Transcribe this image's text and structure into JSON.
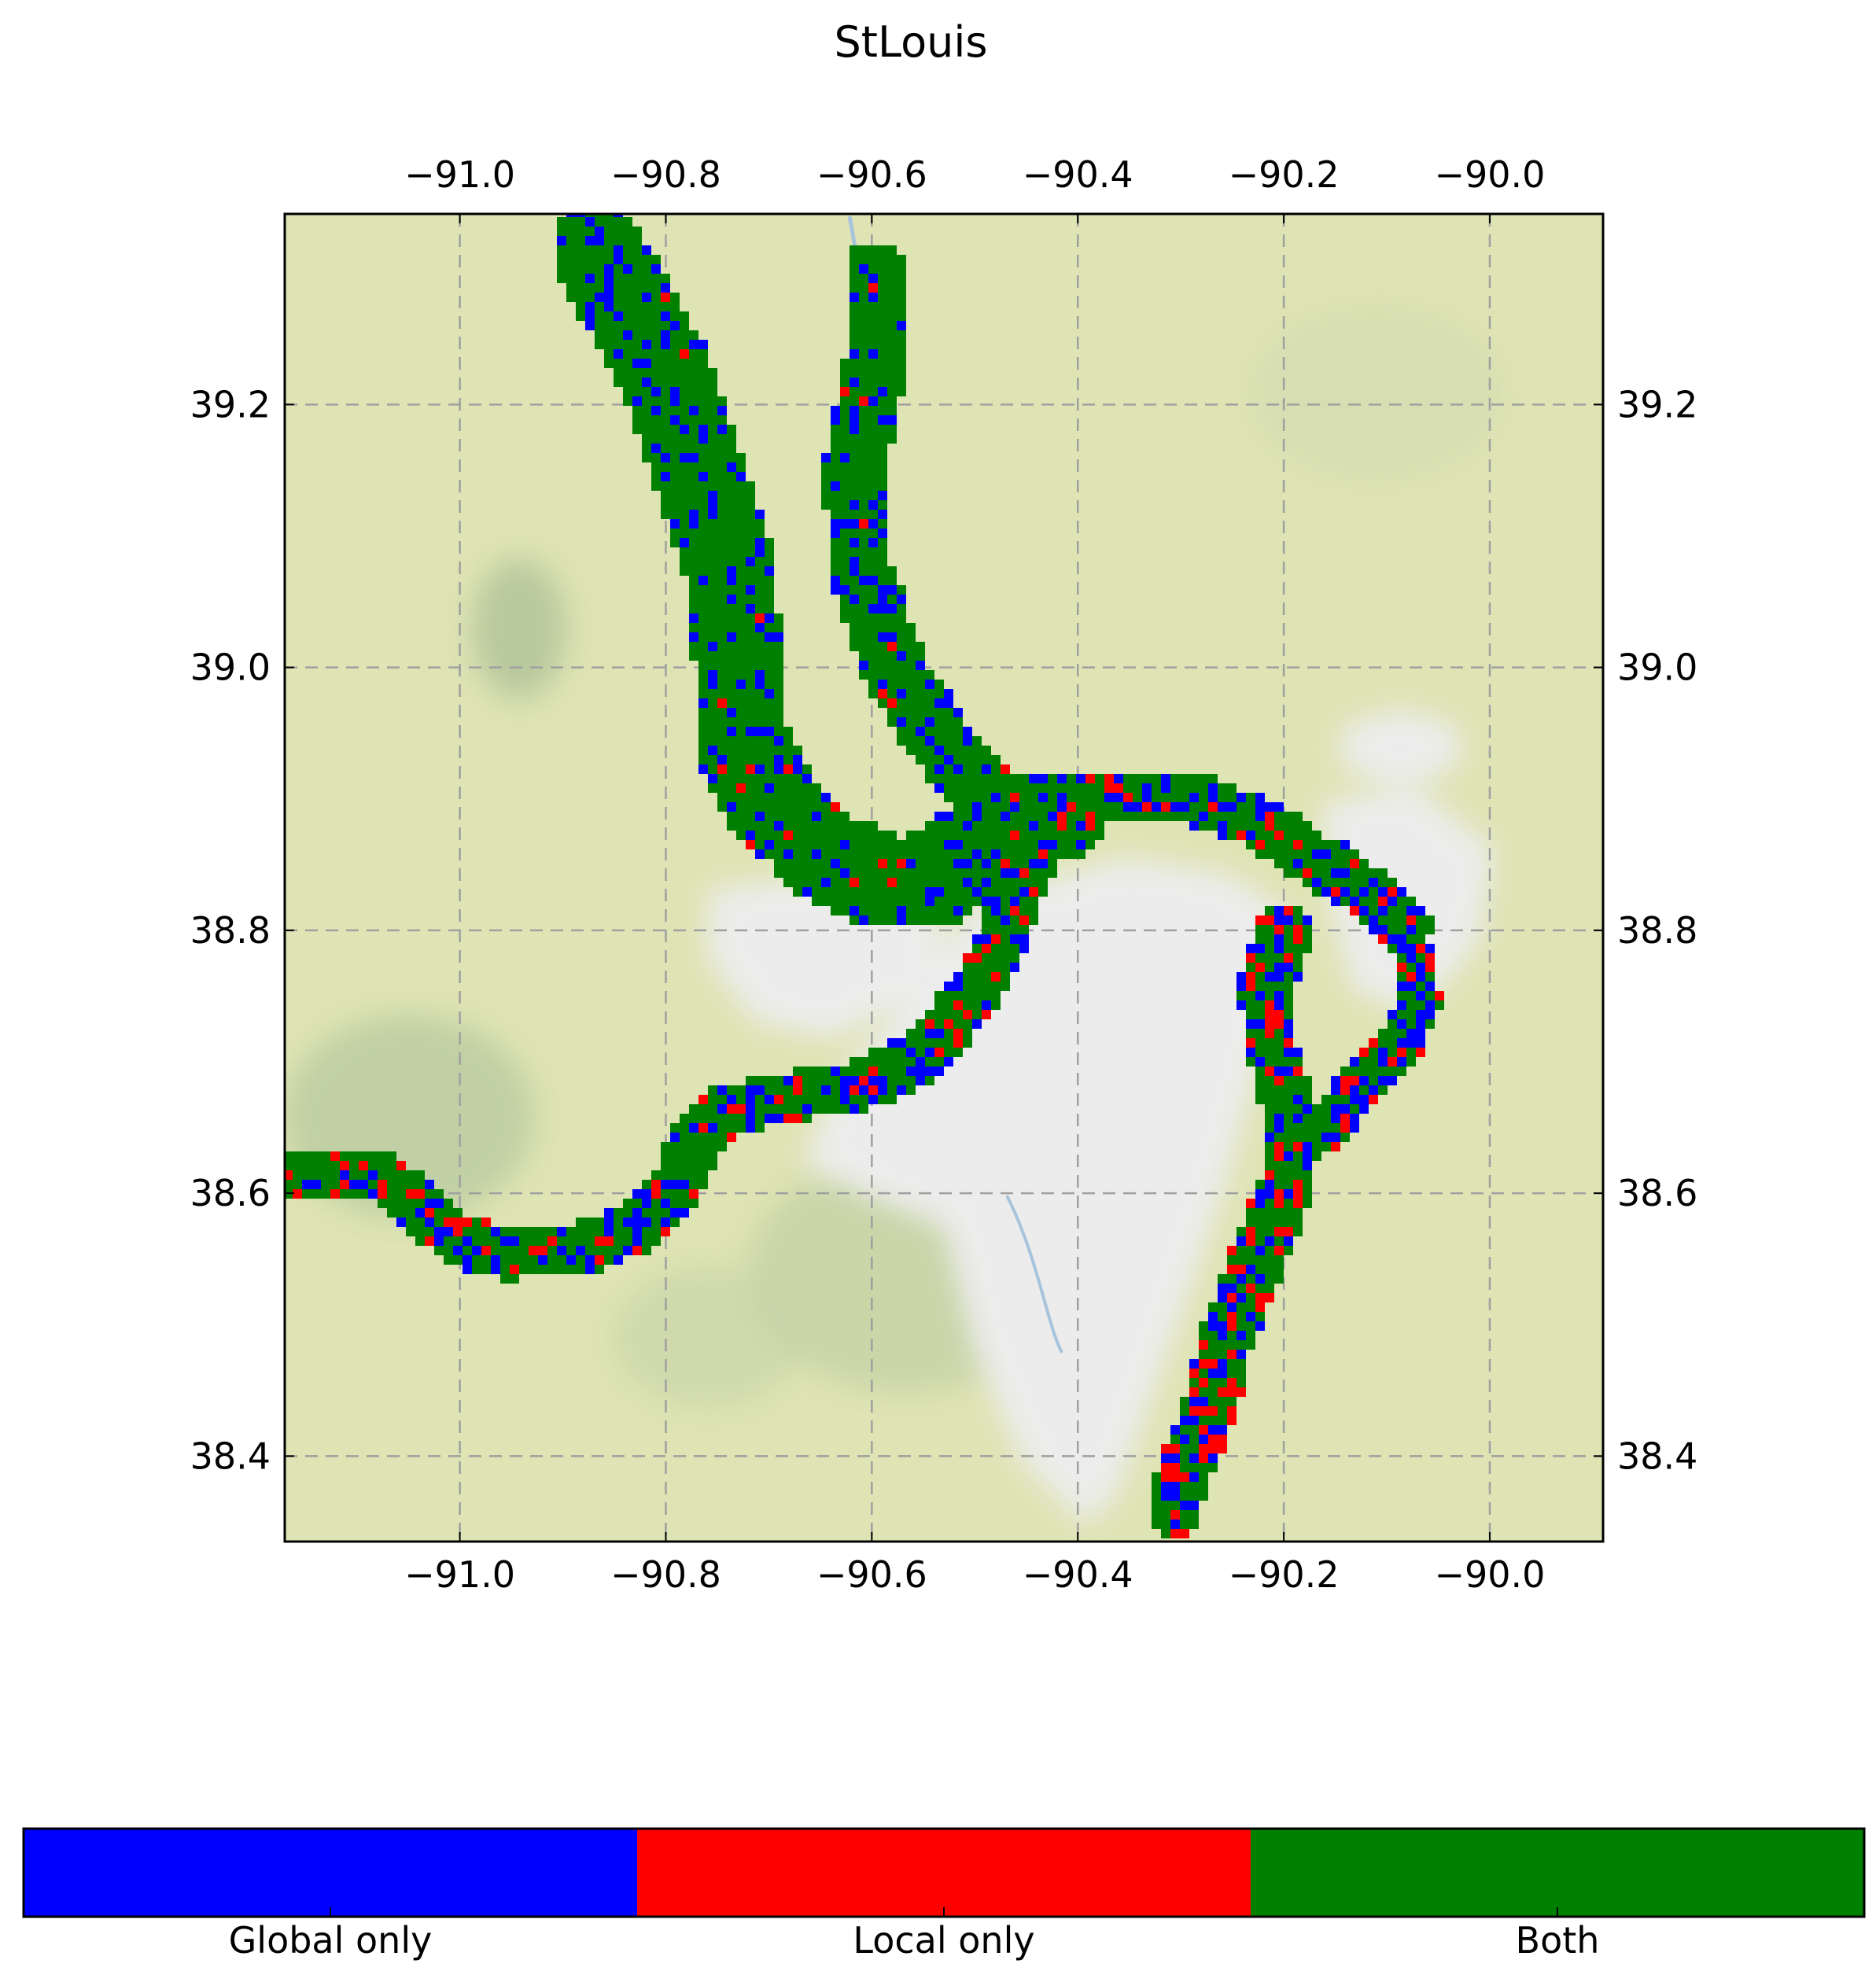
{
  "title": "StLouis",
  "axes": {
    "x_ticks": [
      {
        "value": -91.0,
        "label": "−91.0"
      },
      {
        "value": -90.8,
        "label": "−90.8"
      },
      {
        "value": -90.6,
        "label": "−90.6"
      },
      {
        "value": -90.4,
        "label": "−90.4"
      },
      {
        "value": -90.2,
        "label": "−90.2"
      },
      {
        "value": -90.0,
        "label": "−90.0"
      }
    ],
    "y_ticks": [
      {
        "value": 39.2,
        "label": "39.2"
      },
      {
        "value": 39.0,
        "label": "39.0"
      },
      {
        "value": 38.8,
        "label": "38.8"
      },
      {
        "value": 38.6,
        "label": "38.6"
      },
      {
        "value": 38.4,
        "label": "38.4"
      }
    ],
    "x_range": [
      -91.17,
      -89.89
    ],
    "y_range": [
      38.335,
      39.345
    ],
    "grid": true
  },
  "legend": {
    "position": "bottom",
    "items": [
      {
        "label": "Global only",
        "color": "#0000ff"
      },
      {
        "label": "Local only",
        "color": "#ff0000"
      },
      {
        "label": "Both",
        "color": "#008000"
      }
    ]
  },
  "basemap": {
    "land_color": "#dfe4b4",
    "urban_color": "#ececec",
    "river_color": "#a8c4dc"
  },
  "flood_paths": {
    "missouri": [
      [
        -91.16,
        38.615
      ],
      [
        -91.08,
        38.615
      ],
      [
        -91.04,
        38.59
      ],
      [
        -91.0,
        38.565
      ],
      [
        -90.95,
        38.555
      ],
      [
        -90.88,
        38.56
      ],
      [
        -90.82,
        38.575
      ],
      [
        -90.79,
        38.605
      ],
      [
        -90.77,
        38.64
      ],
      [
        -90.74,
        38.665
      ],
      [
        -90.68,
        38.675
      ],
      [
        -90.6,
        38.685
      ],
      [
        -90.55,
        38.705
      ],
      [
        -90.51,
        38.74
      ],
      [
        -90.48,
        38.78
      ],
      [
        -90.46,
        38.83
      ],
      [
        -90.43,
        38.87
      ],
      [
        -90.38,
        38.9
      ],
      [
        -90.3,
        38.905
      ],
      [
        -90.23,
        38.885
      ],
      [
        -90.18,
        38.86
      ],
      [
        -90.12,
        38.83
      ],
      [
        -90.08,
        38.8
      ]
    ],
    "mississippi_upper": [
      [
        -90.87,
        39.32
      ],
      [
        -90.84,
        39.28
      ],
      [
        -90.8,
        39.22
      ],
      [
        -90.77,
        39.15
      ],
      [
        -90.74,
        39.08
      ],
      [
        -90.73,
        39.0
      ],
      [
        -90.73,
        38.95
      ],
      [
        -90.7,
        38.9
      ],
      [
        -90.65,
        38.86
      ],
      [
        -90.6,
        38.84
      ],
      [
        -90.54,
        38.84
      ],
      [
        -90.5,
        38.86
      ],
      [
        -90.46,
        38.88
      ],
      [
        -90.42,
        38.89
      ]
    ],
    "illinois": [
      [
        -90.6,
        39.3
      ],
      [
        -90.6,
        39.22
      ],
      [
        -90.62,
        39.14
      ],
      [
        -90.61,
        39.07
      ],
      [
        -90.58,
        39.0
      ],
      [
        -90.54,
        38.95
      ],
      [
        -90.5,
        38.91
      ],
      [
        -90.47,
        38.89
      ]
    ],
    "mississippi_lower": [
      [
        -90.2,
        38.8
      ],
      [
        -90.22,
        38.75
      ],
      [
        -90.21,
        38.7
      ],
      [
        -90.19,
        38.65
      ],
      [
        -90.2,
        38.6
      ],
      [
        -90.22,
        38.56
      ],
      [
        -90.24,
        38.52
      ],
      [
        -90.26,
        38.48
      ],
      [
        -90.27,
        38.44
      ],
      [
        -90.29,
        38.4
      ],
      [
        -90.31,
        38.36
      ]
    ],
    "east_plain": [
      [
        -90.16,
        38.86
      ],
      [
        -90.11,
        38.83
      ],
      [
        -90.08,
        38.79
      ],
      [
        -90.07,
        38.75
      ],
      [
        -90.09,
        38.71
      ],
      [
        -90.13,
        38.68
      ],
      [
        -90.16,
        38.65
      ]
    ]
  }
}
